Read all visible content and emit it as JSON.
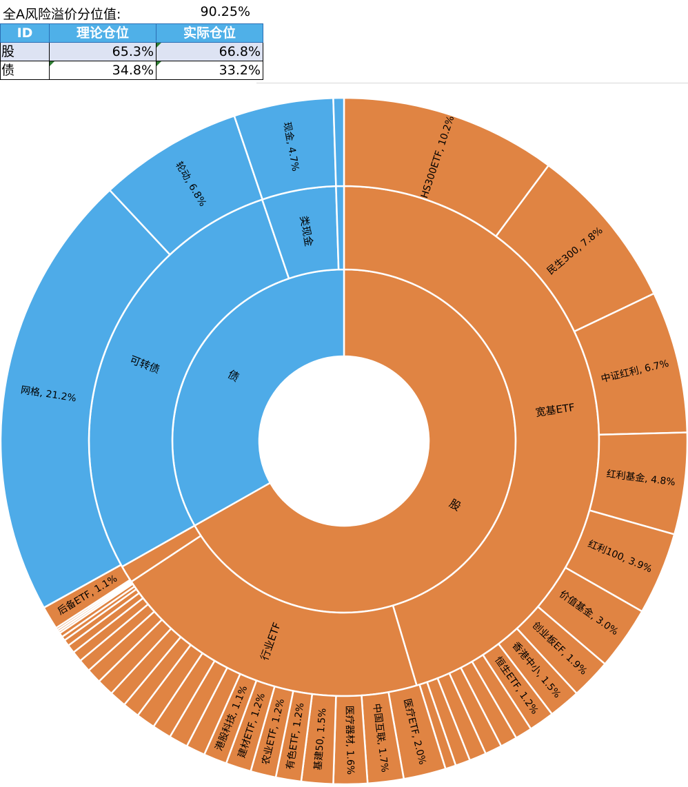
{
  "header": {
    "risk_label": "全A风险溢价分位值:",
    "risk_value": "90.25%"
  },
  "table": {
    "headers": [
      "ID",
      "理论仓位",
      "实际仓位"
    ],
    "rows": [
      {
        "id": "股",
        "theory": "65.3%",
        "actual": "66.8%"
      },
      {
        "id": "债",
        "theory": "34.8%",
        "actual": "33.2%"
      }
    ]
  },
  "colors": {
    "stock": "#e08443",
    "bond": "#4eabe8",
    "header_bg": "#4fb0e8",
    "row_highlight": "#dde3f3"
  },
  "chart_data": {
    "type": "sunburst",
    "title": "",
    "rings": [
      [
        {
          "label": "股",
          "value": 66.8,
          "color": "#e08443"
        },
        {
          "label": "债",
          "value": 33.2,
          "color": "#4eabe8"
        }
      ],
      [
        {
          "label": "宽基ETF",
          "value": 45.4,
          "color": "#e08443"
        },
        {
          "label": "行业ETF",
          "value": 20.3,
          "color": "#e08443"
        },
        {
          "label": "",
          "value": 1.1,
          "color": "#e08443"
        },
        {
          "label": "可转债",
          "value": 28.0,
          "color": "#4eabe8"
        },
        {
          "label": "类现金",
          "value": 4.7,
          "color": "#4eabe8"
        },
        {
          "label": "",
          "value": 0.5,
          "color": "#4eabe8"
        }
      ],
      [
        {
          "label": "HS300ETF, 10.2%",
          "value": 10.2,
          "color": "#e08443"
        },
        {
          "label": "民生300, 7.8%",
          "value": 7.8,
          "color": "#e08443"
        },
        {
          "label": "中证红利, 6.7%",
          "value": 6.7,
          "color": "#e08443"
        },
        {
          "label": "红利基金, 4.8%",
          "value": 4.8,
          "color": "#e08443"
        },
        {
          "label": "红利100, 3.9%",
          "value": 3.9,
          "color": "#e08443"
        },
        {
          "label": "价值基金, 3.0%",
          "value": 3.0,
          "color": "#e08443"
        },
        {
          "label": "创业板EF, 1.9%",
          "value": 1.9,
          "color": "#e08443"
        },
        {
          "label": "香港中小, 1.5%",
          "value": 1.5,
          "color": "#e08443"
        },
        {
          "label": "恒生ETF, 1.2%",
          "value": 1.2,
          "color": "#e08443"
        },
        {
          "label": "",
          "value": 0.8,
          "color": "#e08443"
        },
        {
          "label": "",
          "value": 0.8,
          "color": "#e08443"
        },
        {
          "label": "",
          "value": 0.8,
          "color": "#e08443"
        },
        {
          "label": "",
          "value": 0.8,
          "color": "#e08443"
        },
        {
          "label": "",
          "value": 0.7,
          "color": "#e08443"
        },
        {
          "label": "",
          "value": 0.5,
          "color": "#e08443"
        },
        {
          "label": "医疗ETF, 2.0%",
          "value": 2.0,
          "color": "#e08443"
        },
        {
          "label": "中国互联, 1.7%",
          "value": 1.7,
          "color": "#e08443"
        },
        {
          "label": "医疗器材, 1.6%",
          "value": 1.6,
          "color": "#e08443"
        },
        {
          "label": "基建50, 1.5%",
          "value": 1.5,
          "color": "#e08443"
        },
        {
          "label": "有色ETF, 1.2%",
          "value": 1.2,
          "color": "#e08443"
        },
        {
          "label": "农业ETF, 1.2%",
          "value": 1.2,
          "color": "#e08443"
        },
        {
          "label": "建材ETF, 1.2%",
          "value": 1.2,
          "color": "#e08443"
        },
        {
          "label": "港股科技, 1.1%",
          "value": 1.1,
          "color": "#e08443"
        },
        {
          "label": "",
          "value": 0.9,
          "color": "#e08443"
        },
        {
          "label": "",
          "value": 0.9,
          "color": "#e08443"
        },
        {
          "label": "",
          "value": 0.9,
          "color": "#e08443"
        },
        {
          "label": "",
          "value": 0.9,
          "color": "#e08443"
        },
        {
          "label": "",
          "value": 0.8,
          "color": "#e08443"
        },
        {
          "label": "",
          "value": 0.8,
          "color": "#e08443"
        },
        {
          "label": "",
          "value": 0.8,
          "color": "#e08443"
        },
        {
          "label": "",
          "value": 0.7,
          "color": "#e08443"
        },
        {
          "label": "",
          "value": 0.6,
          "color": "#e08443"
        },
        {
          "label": "",
          "value": 0.5,
          "color": "#e08443"
        },
        {
          "label": "",
          "value": 0.4,
          "color": "#e08443"
        },
        {
          "label": "",
          "value": 0.3,
          "color": "#e08443"
        },
        {
          "label": "",
          "value": 0.2,
          "color": "#e08443"
        },
        {
          "label": "",
          "value": 0.2,
          "color": "#e08443"
        },
        {
          "label": "",
          "value": 0.1,
          "color": "#e08443"
        },
        {
          "label": "",
          "value": 0.1,
          "color": "#e08443"
        },
        {
          "label": "",
          "value": 0.1,
          "color": "#e08443"
        },
        {
          "label": "后备ETF, 1.1%",
          "value": 1.1,
          "color": "#e08443"
        },
        {
          "label": "网格, 21.2%",
          "value": 21.2,
          "color": "#4eabe8"
        },
        {
          "label": "轮动, 6.8%",
          "value": 6.8,
          "color": "#4eabe8"
        },
        {
          "label": "现金, 4.7%",
          "value": 4.7,
          "color": "#4eabe8"
        },
        {
          "label": "",
          "value": 0.5,
          "color": "#4eabe8"
        }
      ]
    ]
  }
}
